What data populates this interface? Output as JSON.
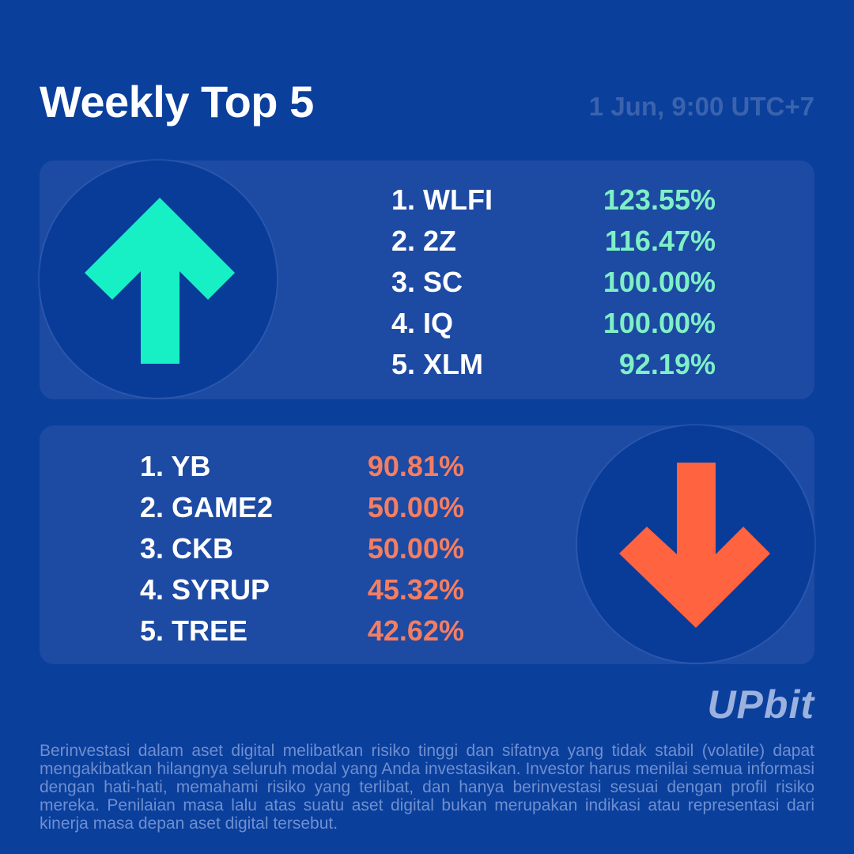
{
  "header": {
    "title": "Weekly Top 5",
    "datetime": "1 Jun, 9:00 UTC+7"
  },
  "gainers": [
    {
      "rank_name": "1. WLFI",
      "change": "123.55%"
    },
    {
      "rank_name": "2. 2Z",
      "change": "116.47%"
    },
    {
      "rank_name": "3. SC",
      "change": "100.00%"
    },
    {
      "rank_name": "4. IQ",
      "change": "100.00%"
    },
    {
      "rank_name": "5. XLM",
      "change": "92.19%"
    }
  ],
  "losers": [
    {
      "rank_name": "1. YB",
      "change": "90.81%"
    },
    {
      "rank_name": "2. GAME2",
      "change": "50.00%"
    },
    {
      "rank_name": "3. CKB",
      "change": "50.00%"
    },
    {
      "rank_name": "4. SYRUP",
      "change": "45.32%"
    },
    {
      "rank_name": "5. TREE",
      "change": "42.62%"
    }
  ],
  "icons": {
    "up": "arrow-up-icon",
    "down": "arrow-down-icon"
  },
  "colors": {
    "background": "#0a3f9c",
    "gain": "#7ff0c6",
    "loss": "#f47e62",
    "up_arrow": "#17f0c4",
    "down_arrow": "#ff6340"
  },
  "brand": {
    "logo_text": "UPbit"
  },
  "footer": {
    "disclaimer": "Berinvestasi dalam aset digital melibatkan risiko tinggi dan sifatnya yang tidak stabil (volatile) dapat mengakibatkan hilangnya seluruh modal yang Anda investasikan. Investor harus menilai semua informasi dengan hati-hati, memahami risiko yang terlibat, dan hanya berinvestasi sesuai dengan profil risiko mereka. Penilaian masa lalu atas suatu aset digital bukan merupakan indikasi atau representasi dari kinerja masa depan aset digital tersebut."
  }
}
